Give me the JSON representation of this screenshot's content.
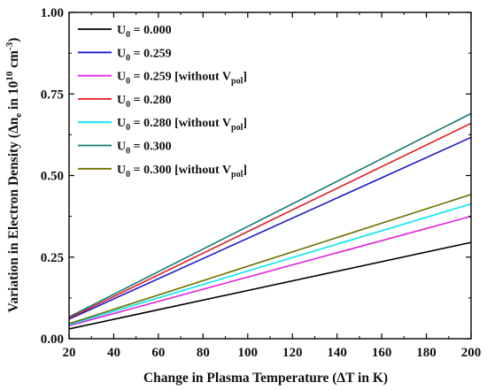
{
  "chart_data": {
    "type": "line",
    "x_axis": {
      "title": "Change in Plasma Temperature (ΔT in K)",
      "range": [
        20,
        200
      ],
      "ticks": [
        20,
        40,
        60,
        80,
        100,
        120,
        140,
        160,
        180,
        200
      ]
    },
    "y_axis": {
      "title_main": "Variation in Electron Density (Δn",
      "title_sub": "e",
      "title_mid": " in 10",
      "title_sup": "10",
      "title_unit": " cm",
      "title_unit_sup": "-3",
      "title_close": ")",
      "range": [
        0.0,
        1.0
      ],
      "ticks": [
        "0.00",
        "0.25",
        "0.50",
        "0.75",
        "1.00"
      ]
    },
    "grid": false,
    "legend_position": "top-left",
    "series": [
      {
        "label_pre": "U",
        "label_sub": "0",
        "label_post": " = 0.000",
        "label_tail": "",
        "tail_sub": "",
        "tail_close": "",
        "color": "#000000",
        "x": [
          20,
          200
        ],
        "y": [
          0.03,
          0.295
        ]
      },
      {
        "label_pre": "U",
        "label_sub": "0",
        "label_post": " = 0.259",
        "label_tail": "",
        "tail_sub": "",
        "tail_close": "",
        "color": "#1c1cce",
        "x": [
          20,
          200
        ],
        "y": [
          0.06,
          0.617
        ]
      },
      {
        "label_pre": "U",
        "label_sub": "0",
        "label_post": " = 0.259 [without V",
        "label_tail": "",
        "tail_sub": "pol",
        "tail_close": "]",
        "color": "#e020e0",
        "x": [
          20,
          200
        ],
        "y": [
          0.04,
          0.375
        ]
      },
      {
        "label_pre": "U",
        "label_sub": "0",
        "label_post": " = 0.280",
        "label_tail": "",
        "tail_sub": "",
        "tail_close": "",
        "color": "#e01c1c",
        "x": [
          20,
          200
        ],
        "y": [
          0.063,
          0.66
        ]
      },
      {
        "label_pre": "U",
        "label_sub": "0",
        "label_post": " = 0.280 [without V",
        "label_tail": "",
        "tail_sub": "pol",
        "tail_close": "]",
        "color": "#00e8f2",
        "x": [
          20,
          200
        ],
        "y": [
          0.043,
          0.413
        ]
      },
      {
        "label_pre": "U",
        "label_sub": "0",
        "label_post": " = 0.300",
        "label_tail": "",
        "tail_sub": "",
        "tail_close": "",
        "color": "#127878",
        "x": [
          20,
          200
        ],
        "y": [
          0.067,
          0.69
        ]
      },
      {
        "label_pre": "U",
        "label_sub": "0",
        "label_post": " = 0.300 [without V",
        "label_tail": "",
        "tail_sub": "pol",
        "tail_close": "]",
        "color": "#6e6e00",
        "x": [
          20,
          200
        ],
        "y": [
          0.046,
          0.442
        ]
      }
    ]
  }
}
